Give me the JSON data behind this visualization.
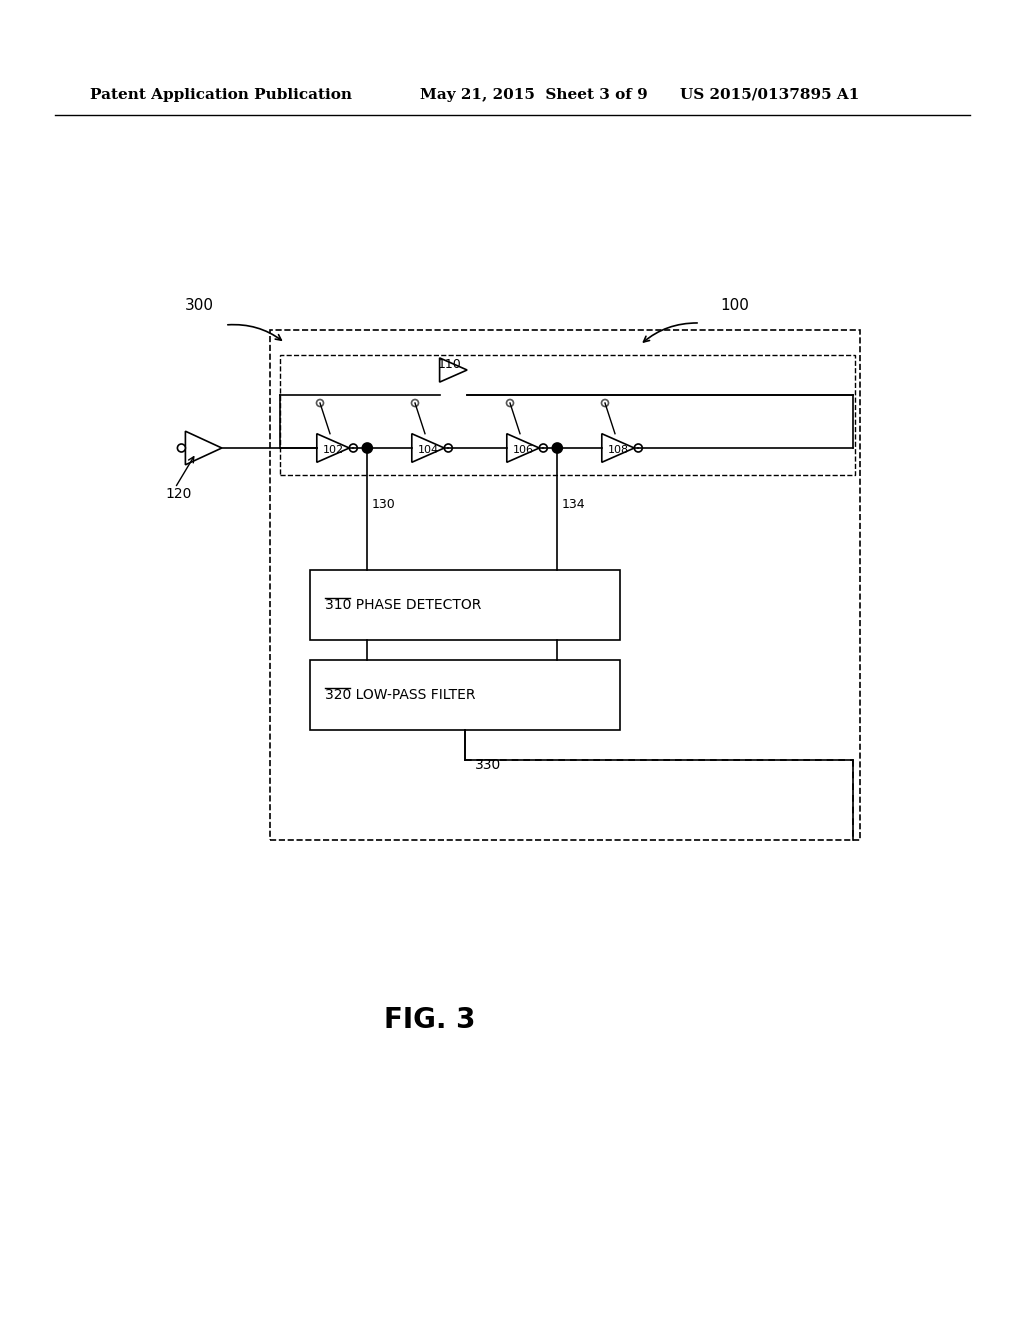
{
  "bg_color": "#ffffff",
  "header_left": "Patent Application Publication",
  "header_mid": "May 21, 2015  Sheet 3 of 9",
  "header_right": "US 2015/0137895 A1",
  "fig_label": "FIG. 3",
  "label_300": "300",
  "label_100": "100",
  "label_120": "120",
  "label_110": "110",
  "label_102": "102",
  "label_104": "104",
  "label_106": "106",
  "label_108": "108",
  "label_130": "130",
  "label_134": "134",
  "label_310": "310",
  "label_310_text": "PHASE DETECTOR",
  "label_320": "320",
  "label_320_text": "LOW-PASS FILTER",
  "label_330": "330"
}
